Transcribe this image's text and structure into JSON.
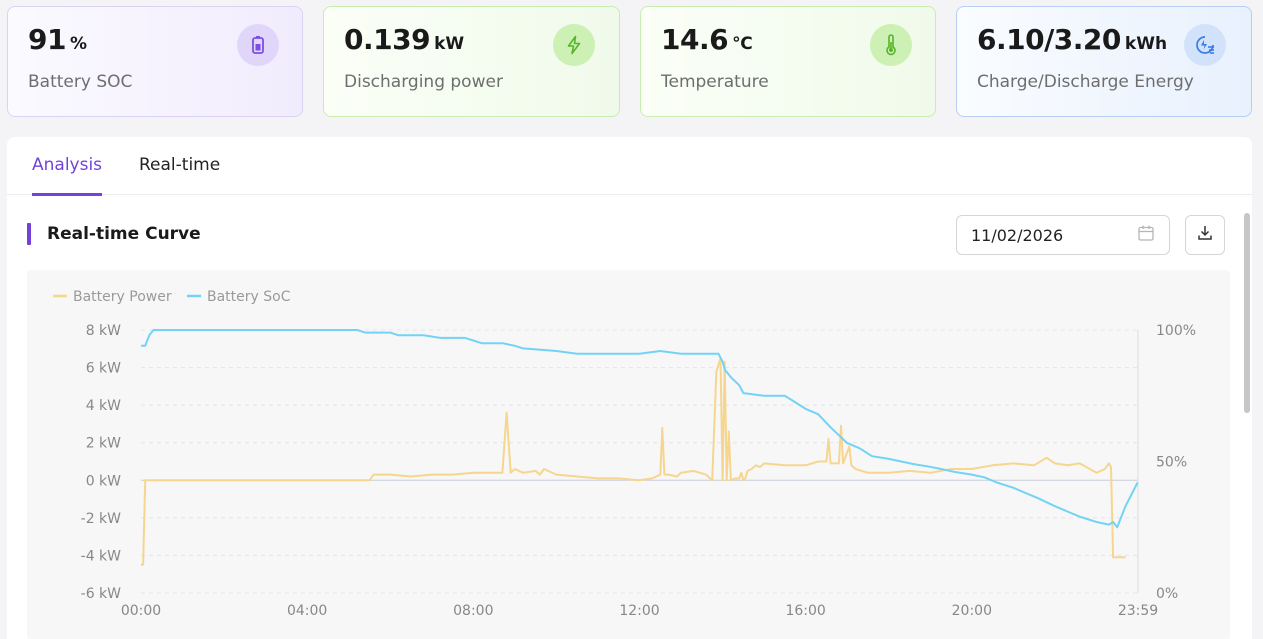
{
  "cards": [
    {
      "value": "91",
      "unit": "%",
      "label": "Battery SOC",
      "icon": "battery-icon"
    },
    {
      "value": "0.139",
      "unit": "kW",
      "label": "Discharging power",
      "icon": "lightning-icon"
    },
    {
      "value": "14.6",
      "unit": "℃",
      "label": "Temperature",
      "icon": "thermometer-icon"
    },
    {
      "value": "6.10/3.20",
      "unit": "kWh",
      "label": "Charge/Discharge Energy",
      "icon": "energy-meter-icon"
    }
  ],
  "tabs": [
    {
      "label": "Analysis",
      "active": true
    },
    {
      "label": "Real-time",
      "active": false
    }
  ],
  "section": {
    "title": "Real-time Curve"
  },
  "date_picker": {
    "value": "11/02/2026",
    "icon": "calendar-icon"
  },
  "download": {
    "icon": "download-icon"
  },
  "colors": {
    "accent": "#7442d8",
    "power": "#f6d68f",
    "soc": "#72d3f4"
  },
  "chart_data": {
    "type": "line",
    "legend": [
      "Battery Power",
      "Battery SoC"
    ],
    "legend_position": "top-left",
    "x_ticks": [
      "00:00",
      "04:00",
      "08:00",
      "12:00",
      "16:00",
      "20:00",
      "23:59"
    ],
    "y_left_ticks": [
      "8 kW",
      "6 kW",
      "4 kW",
      "2 kW",
      "0 kW",
      "-2 kW",
      "-4 kW",
      "-6 kW"
    ],
    "y_right_ticks": [
      "100%",
      "50%",
      "0%"
    ],
    "y_left_range": [
      -6,
      8
    ],
    "y_right_range": [
      0,
      100
    ],
    "x_range_hours": [
      0,
      24
    ],
    "series": [
      {
        "name": "Battery Power",
        "axis": "left",
        "x": [
          0.0,
          0.05,
          0.1,
          0.2,
          1,
          2,
          3,
          4,
          5,
          5.5,
          5.6,
          6,
          6.5,
          7,
          7.5,
          8,
          8.5,
          8.7,
          8.8,
          8.9,
          9.0,
          9.2,
          9.5,
          9.6,
          9.7,
          10,
          10.5,
          11,
          11.5,
          12,
          12.3,
          12.5,
          12.55,
          12.6,
          12.7,
          12.9,
          13,
          13.3,
          13.6,
          13.75,
          13.85,
          13.95,
          14.0,
          14.05,
          14.1,
          14.15,
          14.2,
          14.3,
          14.4,
          14.45,
          14.5,
          14.55,
          14.6,
          14.7,
          14.8,
          14.9,
          15,
          15.5,
          16,
          16.3,
          16.5,
          16.55,
          16.6,
          16.8,
          16.85,
          16.9,
          17,
          17.05,
          17.1,
          17.2,
          17.5,
          18,
          18.5,
          19,
          19.5,
          20,
          20.5,
          21,
          21.5,
          21.8,
          22,
          22.3,
          22.6,
          23,
          23.2,
          23.3,
          23.35,
          23.4,
          23.5,
          23.7
        ],
        "values": [
          -4.5,
          -4.5,
          0,
          0,
          0,
          0,
          0,
          0,
          0,
          0,
          0.3,
          0.3,
          0.2,
          0.3,
          0.3,
          0.4,
          0.4,
          0.4,
          3.6,
          0.4,
          0.6,
          0.4,
          0.5,
          0.3,
          0.6,
          0.3,
          0.2,
          0.1,
          0.1,
          0,
          0.1,
          0.3,
          2.8,
          0.3,
          0.3,
          0.2,
          0.4,
          0.5,
          0.3,
          0,
          5.8,
          6.5,
          0,
          6.3,
          0,
          2.6,
          0,
          0.1,
          0.1,
          0.4,
          0,
          0.1,
          0.5,
          0.6,
          0.8,
          0.7,
          0.9,
          0.8,
          0.8,
          1,
          1,
          2.2,
          0.9,
          0.9,
          2.9,
          0.9,
          1.5,
          1.8,
          0.8,
          0.6,
          0.4,
          0.4,
          0.5,
          0.4,
          0.6,
          0.6,
          0.8,
          0.9,
          0.8,
          1.2,
          0.9,
          0.8,
          0.9,
          0.4,
          0.6,
          0.9,
          0.7,
          -4.1,
          -4.1,
          -4.1
        ]
      },
      {
        "name": "Battery SoC",
        "axis": "right",
        "x": [
          0,
          0.1,
          0.2,
          0.3,
          5.2,
          5.4,
          6,
          6.2,
          6.8,
          7.2,
          7.8,
          8,
          8.2,
          8.7,
          9,
          9.2,
          10,
          10.5,
          11,
          11.2,
          12,
          12.5,
          13,
          13.2,
          13.9,
          14,
          14.05,
          14.2,
          14.4,
          14.5,
          15,
          15.5,
          15.7,
          16,
          16.3,
          16.6,
          17,
          17.3,
          17.6,
          18,
          18.3,
          18.6,
          19,
          19.3,
          19.6,
          20,
          20.3,
          20.6,
          21,
          21.3,
          21.6,
          22,
          22.3,
          22.6,
          23,
          23.3,
          23.4,
          23.5,
          23.7,
          23.99
        ],
        "values": [
          94,
          94,
          98,
          100,
          100,
          99,
          99,
          98,
          98,
          97,
          97,
          96,
          95,
          95,
          94,
          93,
          92,
          91,
          91,
          91,
          91,
          92,
          91,
          91,
          91,
          88,
          85,
          82,
          79,
          76,
          75,
          75,
          73,
          70,
          68,
          63,
          57,
          55,
          52,
          51,
          50,
          49,
          48,
          47,
          46,
          45,
          44,
          42,
          40,
          38,
          36,
          33,
          31,
          29,
          27,
          26,
          27,
          25,
          33,
          42
        ]
      }
    ]
  }
}
